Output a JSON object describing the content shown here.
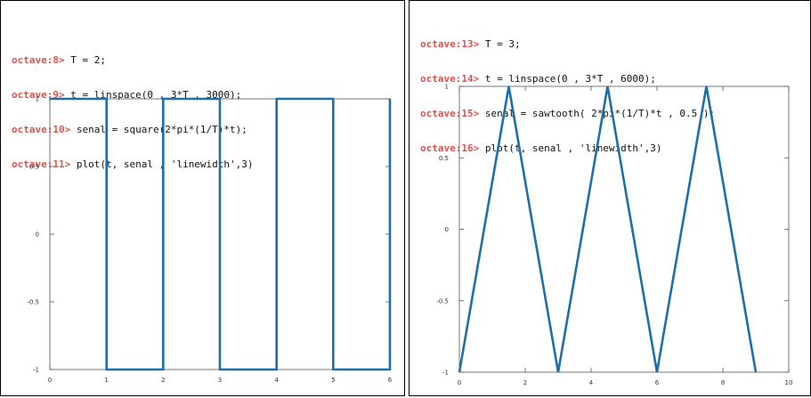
{
  "left": {
    "console": [
      {
        "prompt": "octave:8>",
        "command": "T = 2;"
      },
      {
        "prompt": "octave:9>",
        "command": "t = linspace(0 , 3*T , 3000);"
      },
      {
        "prompt": "octave:10>",
        "command": "senal = square(2*pi*(1/T)*t);"
      },
      {
        "prompt": "octave:11>",
        "command": "plot(t, senal , 'linewidth',3)"
      }
    ]
  },
  "right": {
    "console": [
      {
        "prompt": "octave:13>",
        "command": "T = 3;"
      },
      {
        "prompt": "octave:14>",
        "command": "t = linspace(0 , 3*T , 6000);"
      },
      {
        "prompt": "octave:15>",
        "command": "senal = sawtooth( 2*pi*(1/T)*t , 0.5 );"
      },
      {
        "prompt": "octave:16>",
        "command": "plot(t, senal , 'linewidth',3)"
      }
    ]
  },
  "chart_data": [
    {
      "type": "line",
      "title": "",
      "xlabel": "",
      "ylabel": "",
      "xlim": [
        0,
        6
      ],
      "ylim": [
        -1,
        1
      ],
      "x_ticks": [
        "0",
        "1",
        "2",
        "3",
        "4",
        "5",
        "6"
      ],
      "y_ticks": [
        "1",
        "0.5",
        "0",
        "-0.5",
        "-1"
      ],
      "line_color": "#1f6fa8",
      "grid": false,
      "series": [
        {
          "x": [
            0,
            1,
            1,
            2,
            2,
            3,
            3,
            4,
            4,
            5,
            5,
            6,
            6
          ],
          "y": [
            1,
            1,
            -1,
            -1,
            1,
            1,
            -1,
            -1,
            1,
            1,
            -1,
            -1,
            1
          ]
        }
      ]
    },
    {
      "type": "line",
      "title": "",
      "xlabel": "",
      "ylabel": "",
      "xlim": [
        0,
        10
      ],
      "ylim": [
        -1,
        1
      ],
      "x_ticks": [
        "0",
        "2",
        "4",
        "6",
        "8",
        "10"
      ],
      "y_ticks": [
        "1",
        "0.5",
        "0",
        "-0.5",
        "-1"
      ],
      "line_color": "#1f6fa8",
      "grid": false,
      "series": [
        {
          "x": [
            0,
            1.5,
            3,
            4.5,
            6,
            7.5,
            9
          ],
          "y": [
            -1,
            1,
            -1,
            1,
            -1,
            1,
            -1
          ]
        }
      ]
    }
  ]
}
